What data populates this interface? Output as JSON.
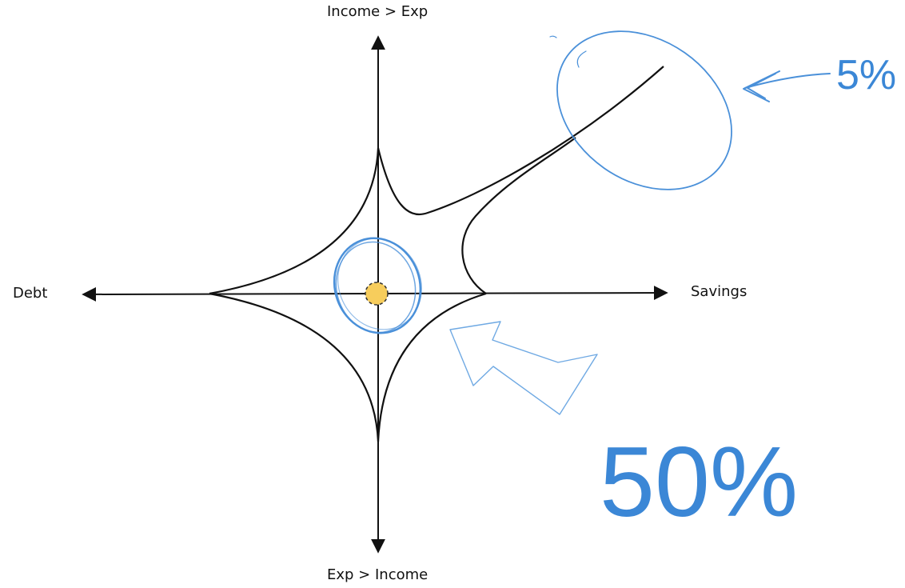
{
  "axes": {
    "top_label": "Income > Exp",
    "bottom_label": "Exp > Income",
    "left_label": "Debt",
    "right_label": "Savings"
  },
  "annotations": {
    "small_percent": "5%",
    "big_percent": "50%"
  },
  "colors": {
    "ink": "#111111",
    "annotation_blue": "#3b87d6",
    "light_blue": "#6fa9e3",
    "center_dot": "#f7cd5c"
  }
}
